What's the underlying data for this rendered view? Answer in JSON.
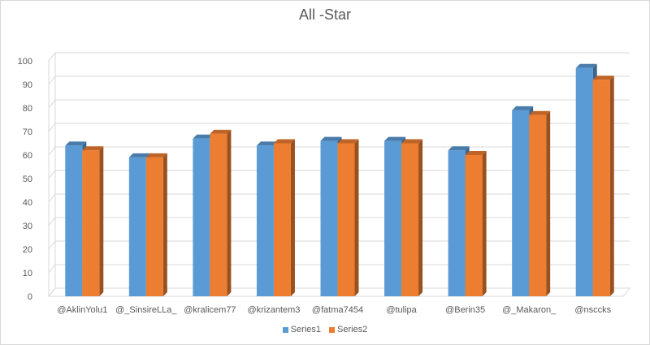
{
  "chart_data": {
    "type": "bar",
    "title": "All -Star",
    "categories": [
      "@AklinYolu1",
      "@_SinsireLLa_",
      "@kralicem77",
      "@krizantem3",
      "@fatma7454",
      "@tulipa",
      "@Berin35",
      "@_Makaron_",
      "@nsccks"
    ],
    "series": [
      {
        "name": "Series1",
        "values": [
          64,
          59,
          67,
          64,
          66,
          66,
          62,
          79,
          97
        ],
        "color": "#5b9bd5"
      },
      {
        "name": "Series2",
        "values": [
          62,
          59,
          69,
          65,
          65,
          65,
          60,
          77,
          92
        ],
        "color": "#ed7d31"
      }
    ],
    "ylim": [
      0,
      100
    ],
    "yticks": [
      0,
      10,
      20,
      30,
      40,
      50,
      60,
      70,
      80,
      90,
      100
    ],
    "grid": true,
    "legend_position": "bottom"
  }
}
